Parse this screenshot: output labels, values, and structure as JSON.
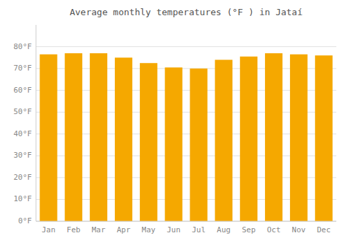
{
  "chart_data": {
    "type": "bar",
    "title": "Average monthly temperatures (°F ) in Jataí",
    "categories": [
      "Jan",
      "Feb",
      "Mar",
      "Apr",
      "May",
      "Jun",
      "Jul",
      "Aug",
      "Sep",
      "Oct",
      "Nov",
      "Dec"
    ],
    "values": [
      76.5,
      77.0,
      77.0,
      75.0,
      72.5,
      70.5,
      70.0,
      74.0,
      75.5,
      77.0,
      76.5,
      76.0
    ],
    "color": "#F5A800",
    "ylim": [
      0,
      90
    ],
    "yticks": [
      {
        "value": 0,
        "label": "0°F"
      },
      {
        "value": 10,
        "label": "10°F"
      },
      {
        "value": 20,
        "label": "20°F"
      },
      {
        "value": 30,
        "label": "30°F"
      },
      {
        "value": 40,
        "label": "40°F"
      },
      {
        "value": 50,
        "label": "50°F"
      },
      {
        "value": 60,
        "label": "60°F"
      },
      {
        "value": 70,
        "label": "70°F"
      },
      {
        "value": 80,
        "label": "80°F"
      }
    ],
    "grid": true
  }
}
